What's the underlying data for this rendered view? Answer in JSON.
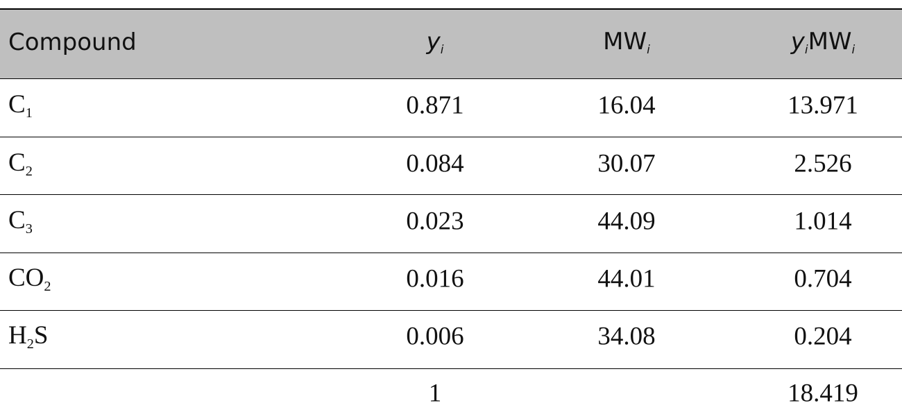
{
  "table": {
    "header": [
      [
        {
          "text": "Compound"
        }
      ],
      [
        {
          "text": "y",
          "italic": true
        },
        {
          "sub": "i",
          "italic": true
        }
      ],
      [
        {
          "text": "MW"
        },
        {
          "sub": "i",
          "italic": true
        }
      ],
      [
        {
          "text": "y",
          "italic": true
        },
        {
          "sub": "i",
          "italic": true
        },
        {
          "text": "MW"
        },
        {
          "sub": "i",
          "italic": true
        }
      ]
    ],
    "rows": [
      {
        "compound": [
          {
            "text": "C"
          },
          {
            "sub": "1"
          }
        ],
        "y": 0.871,
        "mw": 16.04,
        "ymw": 13.971
      },
      {
        "compound": [
          {
            "text": "C"
          },
          {
            "sub": "2"
          }
        ],
        "y": 0.084,
        "mw": 30.07,
        "ymw": 2.526
      },
      {
        "compound": [
          {
            "text": "C"
          },
          {
            "sub": "3"
          }
        ],
        "y": 0.023,
        "mw": 44.09,
        "ymw": 1.014
      },
      {
        "compound": [
          {
            "text": "CO"
          },
          {
            "sub": "2"
          }
        ],
        "y": 0.016,
        "mw": 44.01,
        "ymw": 0.704
      },
      {
        "compound": [
          {
            "text": "H"
          },
          {
            "sub": "2"
          },
          {
            "text": "S"
          }
        ],
        "y": 0.006,
        "mw": 34.08,
        "ymw": 0.204
      }
    ],
    "total": {
      "y": 1,
      "ymw": 18.419
    }
  }
}
